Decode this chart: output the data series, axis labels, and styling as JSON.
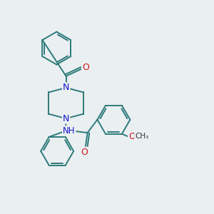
{
  "background_color": "#eaeff2",
  "bond_color": "#2d7a7a",
  "atom_N_color": "#1515cc",
  "atom_O_color": "#cc1515",
  "atom_C_color": "#333333",
  "line_width": 1.4,
  "figsize": [
    3.0,
    3.0
  ],
  "dpi": 100,
  "xlim": [
    0,
    10
  ],
  "ylim": [
    0,
    10
  ]
}
